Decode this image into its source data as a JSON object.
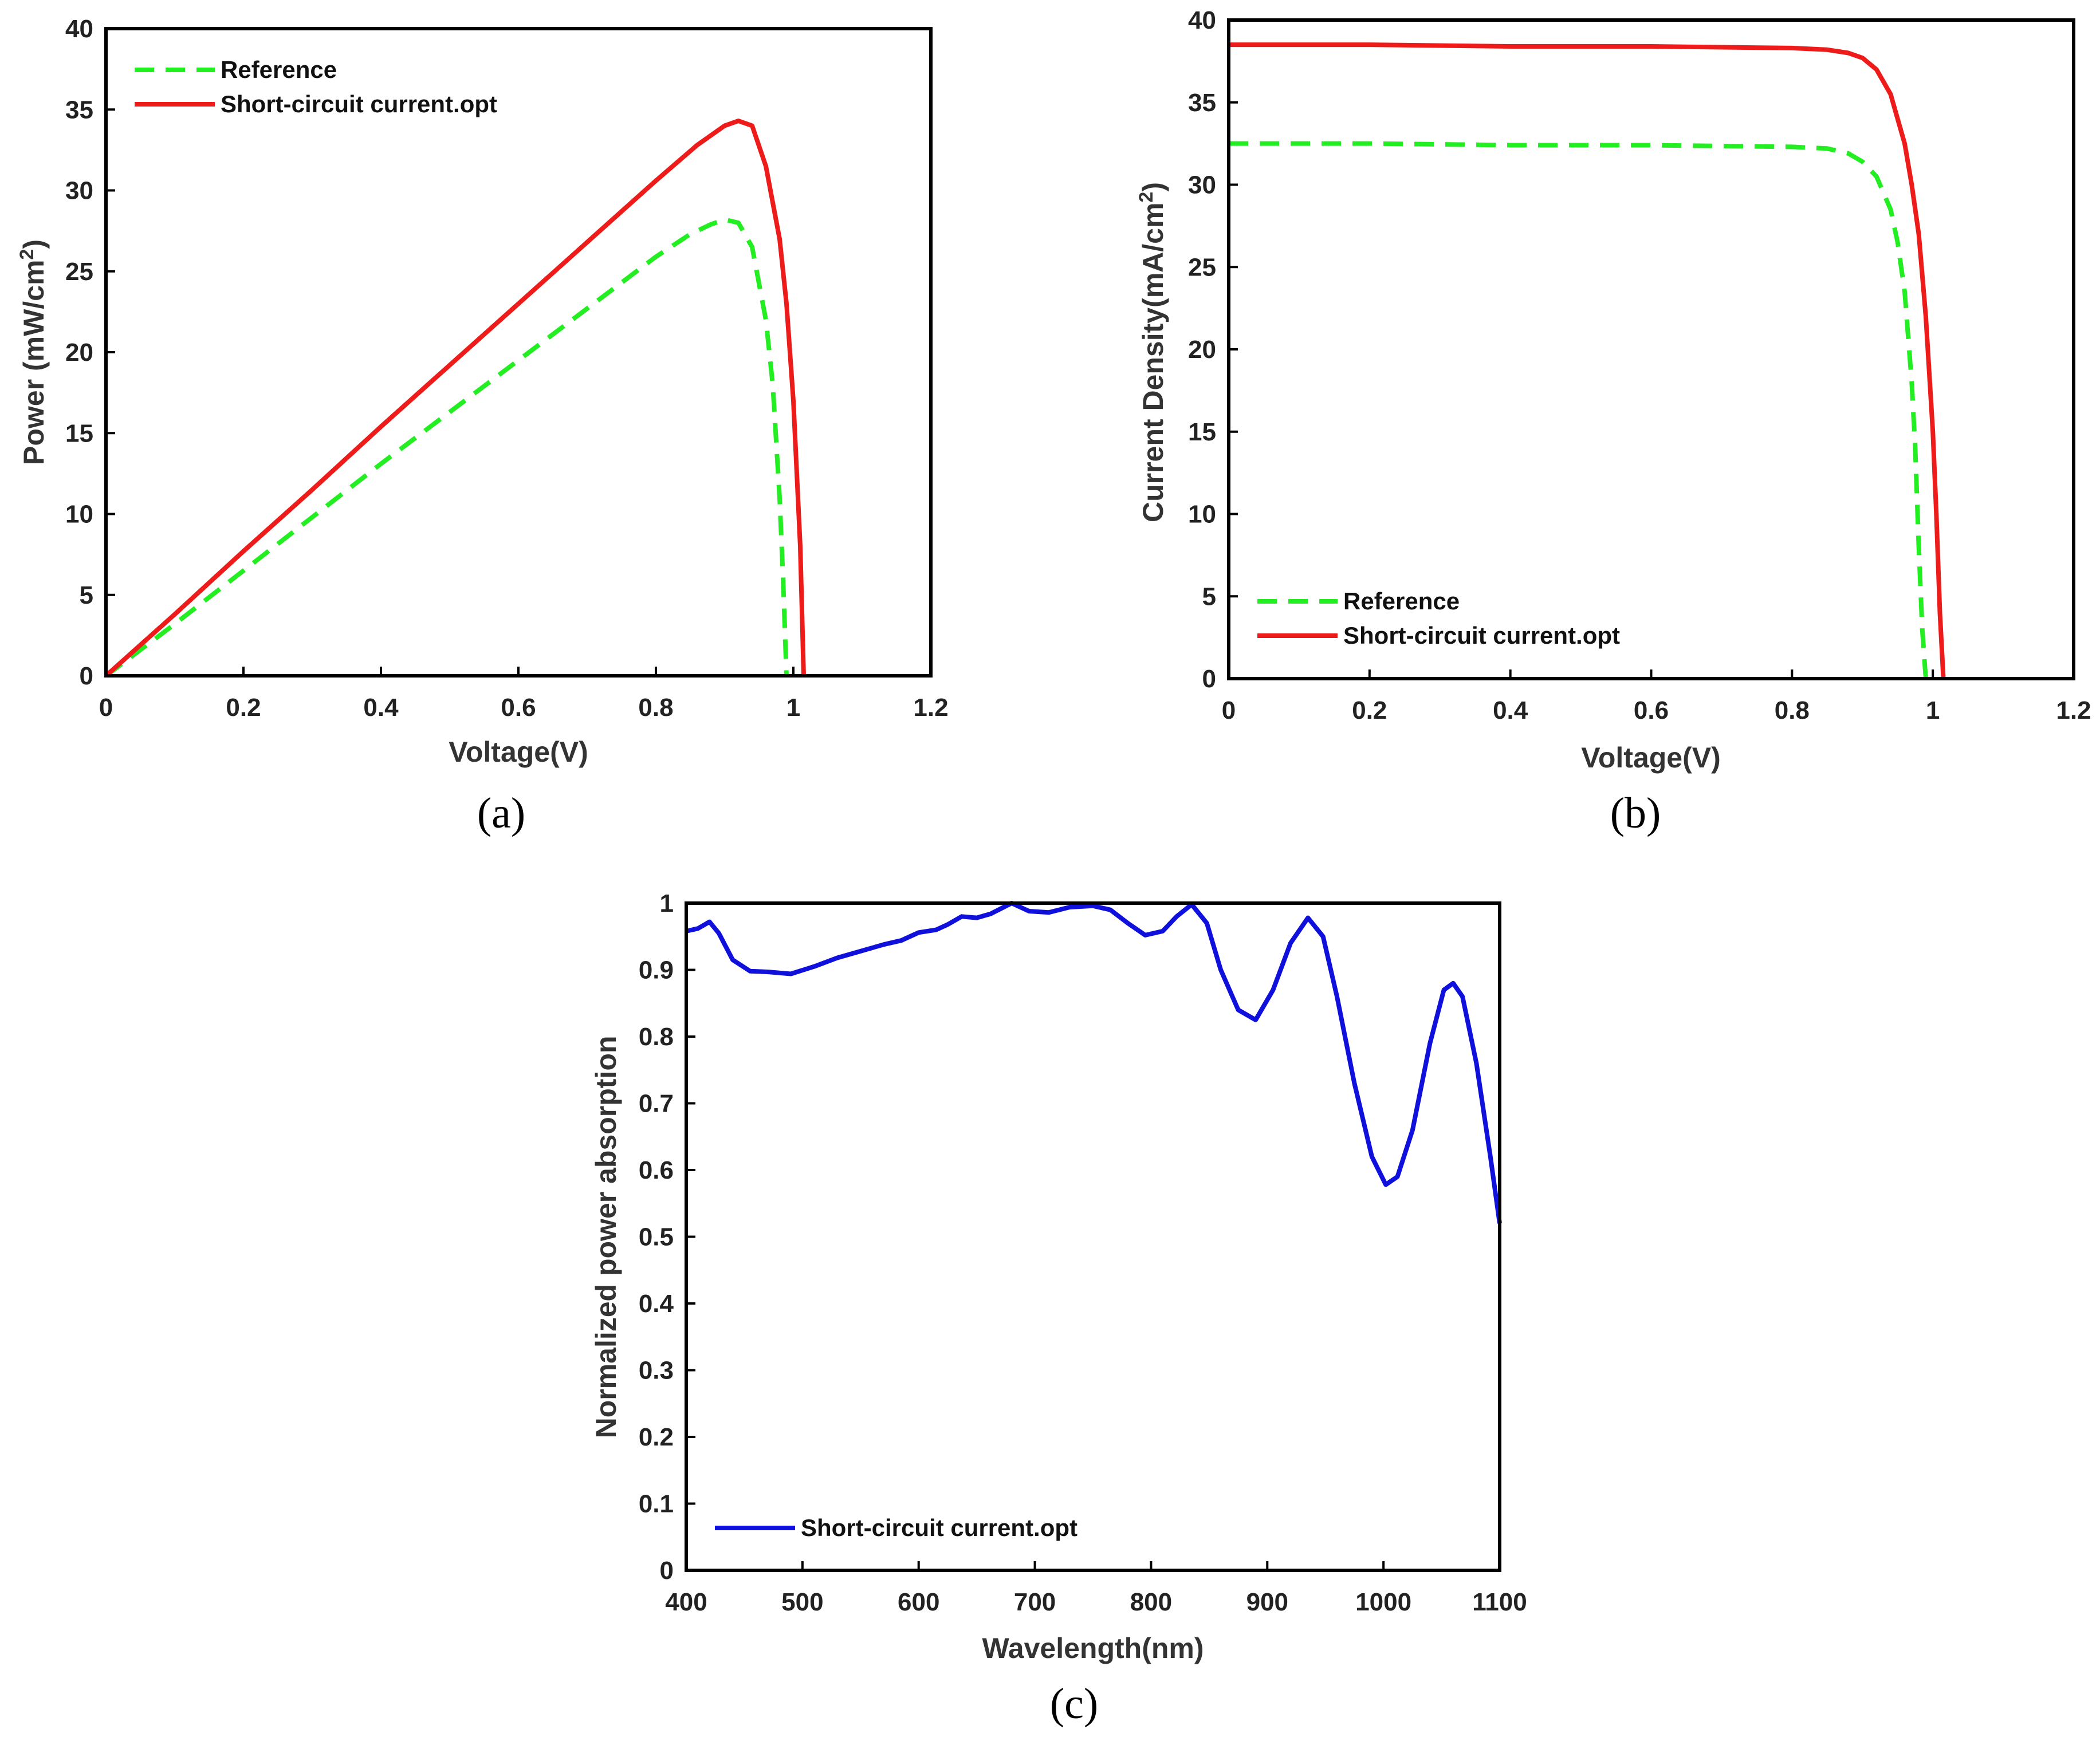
{
  "colors": {
    "reference": "#22ee22",
    "optimized": "#ee1b1b",
    "absorption": "#1010dd",
    "axis": "#000000"
  },
  "chart_data": [
    {
      "id": "a",
      "type": "line",
      "panel_label": "(a)",
      "title": "",
      "xlabel": "Voltage(V)",
      "ylabel": "Power (mW/cm",
      "ylabel_sup": "2",
      "ylabel_end": ")",
      "xlim": [
        0,
        1.2
      ],
      "ylim": [
        0,
        40
      ],
      "xticks": [
        "0",
        "0.2",
        "0.4",
        "0.6",
        "0.8",
        "1",
        "1.2"
      ],
      "yticks": [
        "0",
        "5",
        "10",
        "15",
        "20",
        "25",
        "30",
        "35",
        "40"
      ],
      "legend": [
        "Reference",
        "Short-circuit current.opt"
      ],
      "legend_position": "top-left",
      "series": [
        {
          "name": "Reference",
          "style": "dashed",
          "x": [
            0,
            0.1,
            0.2,
            0.3,
            0.4,
            0.5,
            0.6,
            0.7,
            0.8,
            0.85,
            0.88,
            0.9,
            0.92,
            0.94,
            0.96,
            0.97,
            0.98,
            0.985,
            0.99
          ],
          "y": [
            0,
            3.2,
            6.5,
            9.8,
            13.1,
            16.3,
            19.5,
            22.7,
            25.9,
            27.3,
            27.9,
            28.2,
            28.0,
            26.5,
            22.0,
            18.0,
            11.0,
            6.0,
            0
          ]
        },
        {
          "name": "Short-circuit current.opt",
          "style": "solid",
          "x": [
            0,
            0.1,
            0.2,
            0.3,
            0.4,
            0.5,
            0.6,
            0.7,
            0.8,
            0.86,
            0.9,
            0.92,
            0.94,
            0.96,
            0.98,
            0.99,
            1.0,
            1.01,
            1.015
          ],
          "y": [
            0,
            3.8,
            7.7,
            11.5,
            15.4,
            19.2,
            23.0,
            26.8,
            30.6,
            32.8,
            34.0,
            34.3,
            34.0,
            31.5,
            27.0,
            23.0,
            17.0,
            8.0,
            0
          ]
        }
      ]
    },
    {
      "id": "b",
      "type": "line",
      "panel_label": "(b)",
      "title": "",
      "xlabel": "Voltage(V)",
      "ylabel": "Current Density(mA/cm",
      "ylabel_sup": "2",
      "ylabel_end": ")",
      "xlim": [
        0,
        1.2
      ],
      "ylim": [
        0,
        40
      ],
      "xticks": [
        "0",
        "0.2",
        "0.4",
        "0.6",
        "0.8",
        "1",
        "1.2"
      ],
      "yticks": [
        "0",
        "5",
        "10",
        "15",
        "20",
        "25",
        "30",
        "35",
        "40"
      ],
      "legend": [
        "Reference",
        "Short-circuit current.opt"
      ],
      "legend_position": "bottom-left",
      "series": [
        {
          "name": "Reference",
          "style": "dashed",
          "x": [
            0,
            0.2,
            0.4,
            0.6,
            0.8,
            0.85,
            0.88,
            0.9,
            0.92,
            0.94,
            0.95,
            0.96,
            0.97,
            0.975,
            0.98,
            0.985,
            0.99
          ],
          "y": [
            32.5,
            32.5,
            32.4,
            32.4,
            32.3,
            32.2,
            31.9,
            31.4,
            30.5,
            28.5,
            26.5,
            23.5,
            18.0,
            14.0,
            8.0,
            3.0,
            0
          ]
        },
        {
          "name": "Short-circuit current.opt",
          "style": "solid",
          "x": [
            0,
            0.2,
            0.4,
            0.6,
            0.8,
            0.85,
            0.88,
            0.9,
            0.92,
            0.94,
            0.96,
            0.97,
            0.98,
            0.99,
            1.0,
            1.005,
            1.01,
            1.015
          ],
          "y": [
            38.5,
            38.5,
            38.4,
            38.4,
            38.3,
            38.2,
            38.0,
            37.7,
            37.0,
            35.5,
            32.5,
            30.0,
            27.0,
            22.0,
            15.0,
            10.0,
            4.0,
            0
          ]
        }
      ]
    },
    {
      "id": "c",
      "type": "line",
      "panel_label": "(c)",
      "title": "",
      "xlabel": "Wavelength(nm)",
      "ylabel": "Normalized power absorption",
      "xlim": [
        400,
        1100
      ],
      "ylim": [
        0,
        1
      ],
      "xticks": [
        "400",
        "500",
        "600",
        "700",
        "800",
        "900",
        "1000",
        "1100"
      ],
      "yticks": [
        "0",
        "0.1",
        "0.2",
        "0.3",
        "0.4",
        "0.5",
        "0.6",
        "0.7",
        "0.8",
        "0.9",
        "1"
      ],
      "legend": [
        "Short-circuit current.opt"
      ],
      "legend_position": "bottom-left",
      "series": [
        {
          "name": "Short-circuit current.opt",
          "style": "solid",
          "x": [
            400,
            410,
            420,
            428,
            440,
            455,
            470,
            490,
            510,
            530,
            550,
            570,
            585,
            600,
            615,
            625,
            637,
            650,
            662,
            680,
            695,
            712,
            730,
            750,
            765,
            780,
            795,
            810,
            822,
            835,
            848,
            860,
            875,
            890,
            905,
            920,
            935,
            948,
            960,
            975,
            990,
            1002,
            1012,
            1025,
            1040,
            1052,
            1060,
            1068,
            1080,
            1092,
            1100
          ],
          "y": [
            0.958,
            0.962,
            0.972,
            0.955,
            0.915,
            0.898,
            0.897,
            0.894,
            0.905,
            0.918,
            0.928,
            0.938,
            0.944,
            0.956,
            0.96,
            0.968,
            0.98,
            0.978,
            0.984,
            1.0,
            0.988,
            0.986,
            0.994,
            0.996,
            0.99,
            0.97,
            0.952,
            0.958,
            0.98,
            0.998,
            0.97,
            0.9,
            0.84,
            0.825,
            0.87,
            0.94,
            0.978,
            0.95,
            0.86,
            0.73,
            0.62,
            0.578,
            0.59,
            0.66,
            0.79,
            0.87,
            0.88,
            0.86,
            0.76,
            0.62,
            0.52
          ]
        }
      ]
    }
  ]
}
